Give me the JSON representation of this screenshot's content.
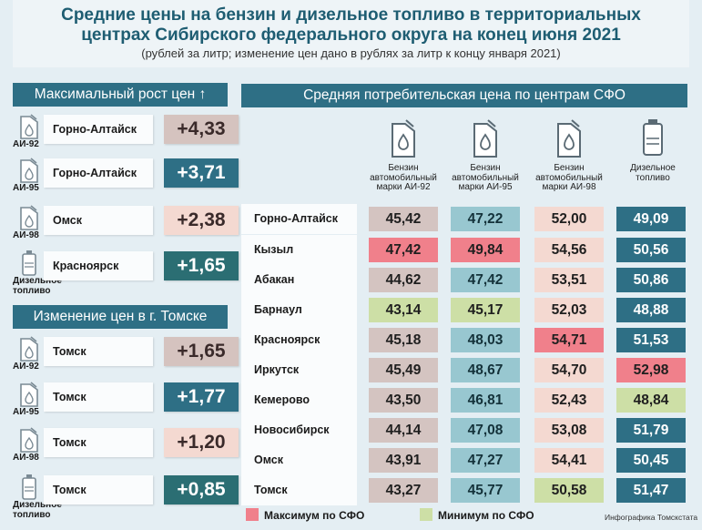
{
  "header": {
    "title_line1": "Средние цены на бензин и дизельное топливо в территориальных",
    "title_line2": "центрах Сибирского федерального округа на конец июня 2021",
    "subtitle": "(рублей за литр; изменение цен дано в рублях за литр к концу января 2021)"
  },
  "max_growth": {
    "title": "Максимальный рост цен ↑",
    "rows": [
      {
        "fuel": "АИ-92",
        "city": "Горно-Алтайск",
        "value": "+4,33"
      },
      {
        "fuel": "АИ-95",
        "city": "Горно-Алтайск",
        "value": "+3,71"
      },
      {
        "fuel": "АИ-98",
        "city": "Омск",
        "value": "+2,38"
      },
      {
        "fuel": "Дизельное топливо",
        "city": "Красноярск",
        "value": "+1,65"
      }
    ]
  },
  "tomsk_change": {
    "title": "Изменение цен в г. Томске",
    "rows": [
      {
        "fuel": "АИ-92",
        "city": "Томск",
        "value": "+1,65"
      },
      {
        "fuel": "АИ-95",
        "city": "Томск",
        "value": "+1,77"
      },
      {
        "fuel": "АИ-98",
        "city": "Томск",
        "value": "+1,20"
      },
      {
        "fuel": "Дизельное топливо",
        "city": "Томск",
        "value": "+0,85"
      }
    ]
  },
  "table": {
    "title": "Средняя потребительская цена по центрам СФО",
    "columns": [
      "Бензин автомобильный марки АИ-92",
      "Бензин автомобильный марки АИ-95",
      "Бензин автомобильный марки АИ-98",
      "Дизельное топливо"
    ],
    "rows": [
      {
        "city": "Горно-Алтайск",
        "ai92": "45,42",
        "ai95": "47,22",
        "ai98": "52,00",
        "dt": "49,09"
      },
      {
        "city": "Кызыл",
        "ai92": "47,42",
        "ai95": "49,84",
        "ai98": "54,56",
        "dt": "50,56"
      },
      {
        "city": "Абакан",
        "ai92": "44,62",
        "ai95": "47,42",
        "ai98": "53,51",
        "dt": "50,86"
      },
      {
        "city": "Барнаул",
        "ai92": "43,14",
        "ai95": "45,17",
        "ai98": "52,03",
        "dt": "48,88"
      },
      {
        "city": "Красноярск",
        "ai92": "45,18",
        "ai95": "48,03",
        "ai98": "54,71",
        "dt": "51,53"
      },
      {
        "city": "Иркутск",
        "ai92": "45,49",
        "ai95": "48,67",
        "ai98": "54,70",
        "dt": "52,98"
      },
      {
        "city": "Кемерово",
        "ai92": "43,50",
        "ai95": "46,81",
        "ai98": "52,43",
        "dt": "48,84"
      },
      {
        "city": "Новосибирск",
        "ai92": "44,14",
        "ai95": "47,08",
        "ai98": "53,08",
        "dt": "51,79"
      },
      {
        "city": "Омск",
        "ai92": "43,91",
        "ai95": "47,27",
        "ai98": "54,41",
        "dt": "50,45"
      },
      {
        "city": "Томск",
        "ai92": "43,27",
        "ai95": "45,77",
        "ai98": "50,58",
        "dt": "51,47"
      }
    ]
  },
  "legend": {
    "max_label": "Максимум по СФО",
    "min_label": "Минимум по СФО"
  },
  "credit": "Инфографика Томскстата",
  "colors": {
    "accent": "#2e6f85",
    "max": "#f0808b",
    "min": "#cddfa6",
    "background": "#e4eef3"
  }
}
